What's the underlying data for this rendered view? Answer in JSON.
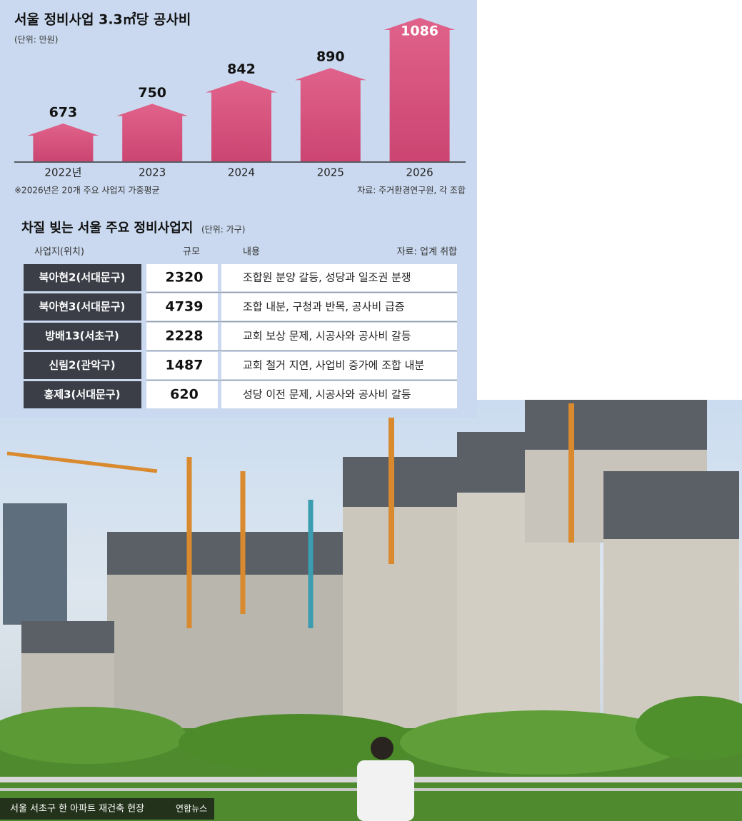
{
  "chart_data": {
    "type": "bar",
    "title": "서울 정비사업 3.3㎡당 공사비",
    "subtitle": "(단위: 만원)",
    "categories": [
      "2022년",
      "2023",
      "2024",
      "2025",
      "2026"
    ],
    "values": [
      673,
      750,
      842,
      890,
      1086
    ],
    "color": "#dc5880",
    "note": "※2026년은 20개 주요 사업지 가중평균",
    "source": "자료: 주거환경연구원, 각 조합"
  },
  "table": {
    "title": "차질 빚는 서울 주요 정비사업지",
    "unit": "(단위: 가구)",
    "source": "자료: 업계 취합",
    "headers": [
      "사업지(위치)",
      "규모",
      "내용"
    ],
    "rows": [
      [
        "북아현2(서대문구)",
        2320,
        "조합원 분양 갈등, 성당과 일조권 분쟁"
      ],
      [
        "북아현3(서대문구)",
        4739,
        "조합 내분, 구청과 반목, 공사비 급증"
      ],
      [
        "방배13(서초구)",
        2228,
        "교회 보상 문제, 시공사와 공사비 갈등"
      ],
      [
        "신림2(관악구)",
        1487,
        "교회 철거 지연, 사업비 증가에 조합 내분"
      ],
      [
        "홍제3(서대문구)",
        620,
        "성당 이전 문제, 시공사와 공사비 갈등"
      ]
    ]
  },
  "photo": {
    "caption": "서울 서초구 한 아파트 재건축 현장",
    "credit": "연합뉴스"
  }
}
